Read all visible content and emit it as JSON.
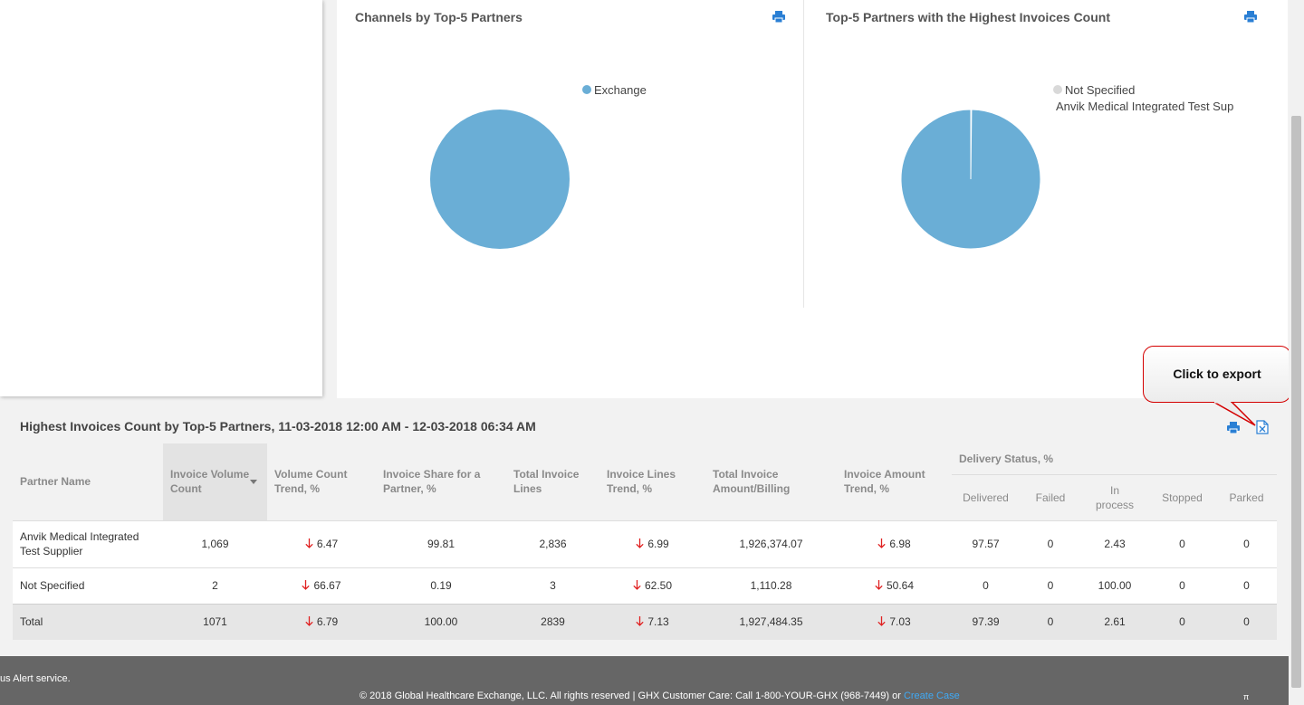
{
  "charts": [
    {
      "title": "Channels by Top-5 Partners",
      "legend": [
        {
          "label": "Exchange",
          "color": "#6aaed6"
        }
      ]
    },
    {
      "title": "Top-5 Partners with the Highest Invoices Count",
      "legend": [
        {
          "label": "Not Specified",
          "color": "#d9d9d9"
        },
        {
          "label": "Anvik Medical Integrated Test Supplier",
          "color": "#6aaed6"
        }
      ]
    }
  ],
  "chart_data": [
    {
      "type": "pie",
      "title": "Channels by Top-5 Partners",
      "categories": [
        "Exchange"
      ],
      "values": [
        100
      ],
      "colors": [
        "#6aaed6"
      ]
    },
    {
      "type": "pie",
      "title": "Top-5 Partners with the Highest Invoices Count",
      "categories": [
        "Not Specified",
        "Anvik Medical Integrated Test Supplier"
      ],
      "values": [
        2,
        1069
      ],
      "colors": [
        "#ffffff",
        "#6aaed6"
      ]
    }
  ],
  "callout": {
    "text": "Click to export"
  },
  "table": {
    "title": "Highest Invoices Count by Top-5 Partners, 11-03-2018 12:00 AM - 12-03-2018 06:34 AM",
    "headers": {
      "partner": "Partner Name",
      "volume": "Invoice Volume Count",
      "volume_trend": "Volume Count Trend, %",
      "share": "Invoice Share for a Partner, %",
      "lines": "Total Invoice Lines",
      "lines_trend": "Invoice Lines Trend, %",
      "amount": "Total Invoice Amount/Billing",
      "amount_trend": "Invoice Amount Trend, %",
      "delivery": "Delivery Status, %",
      "delivered": "Delivered",
      "failed": "Failed",
      "in_process": "In process",
      "stopped": "Stopped",
      "parked": "Parked"
    },
    "rows": [
      {
        "partner": "Anvik Medical Integrated Test Supplier",
        "volume": "1,069",
        "volume_trend": "6.47",
        "share": "99.81",
        "lines": "2,836",
        "lines_trend": "6.99",
        "amount": "1,926,374.07",
        "amount_trend": "6.98",
        "delivered": "97.57",
        "failed": "0",
        "in_process": "2.43",
        "stopped": "0",
        "parked": "0"
      },
      {
        "partner": "Not Specified",
        "volume": "2",
        "volume_trend": "66.67",
        "share": "0.19",
        "lines": "3",
        "lines_trend": "62.50",
        "amount": "1,110.28",
        "amount_trend": "50.64",
        "delivered": "0",
        "failed": "0",
        "in_process": "100.00",
        "stopped": "0",
        "parked": "0"
      }
    ],
    "total": {
      "partner": "Total",
      "volume": "1071",
      "volume_trend": "6.79",
      "share": "100.00",
      "lines": "2839",
      "lines_trend": "7.13",
      "amount": "1,927,484.35",
      "amount_trend": "7.03",
      "delivered": "97.39",
      "failed": "0",
      "in_process": "2.61",
      "stopped": "0",
      "parked": "0"
    }
  },
  "footer": {
    "alert": "us Alert service.",
    "copyright": "© 2018 Global Healthcare Exchange, LLC. All rights reserved | GHX Customer Care: Call 1-800-YOUR-GHX (968-7449) or ",
    "link": "Create Case",
    "pi": "π"
  },
  "colors": {
    "accent": "#2a7fd4",
    "down_arrow": "#e02020",
    "pie": "#6aaed6"
  }
}
